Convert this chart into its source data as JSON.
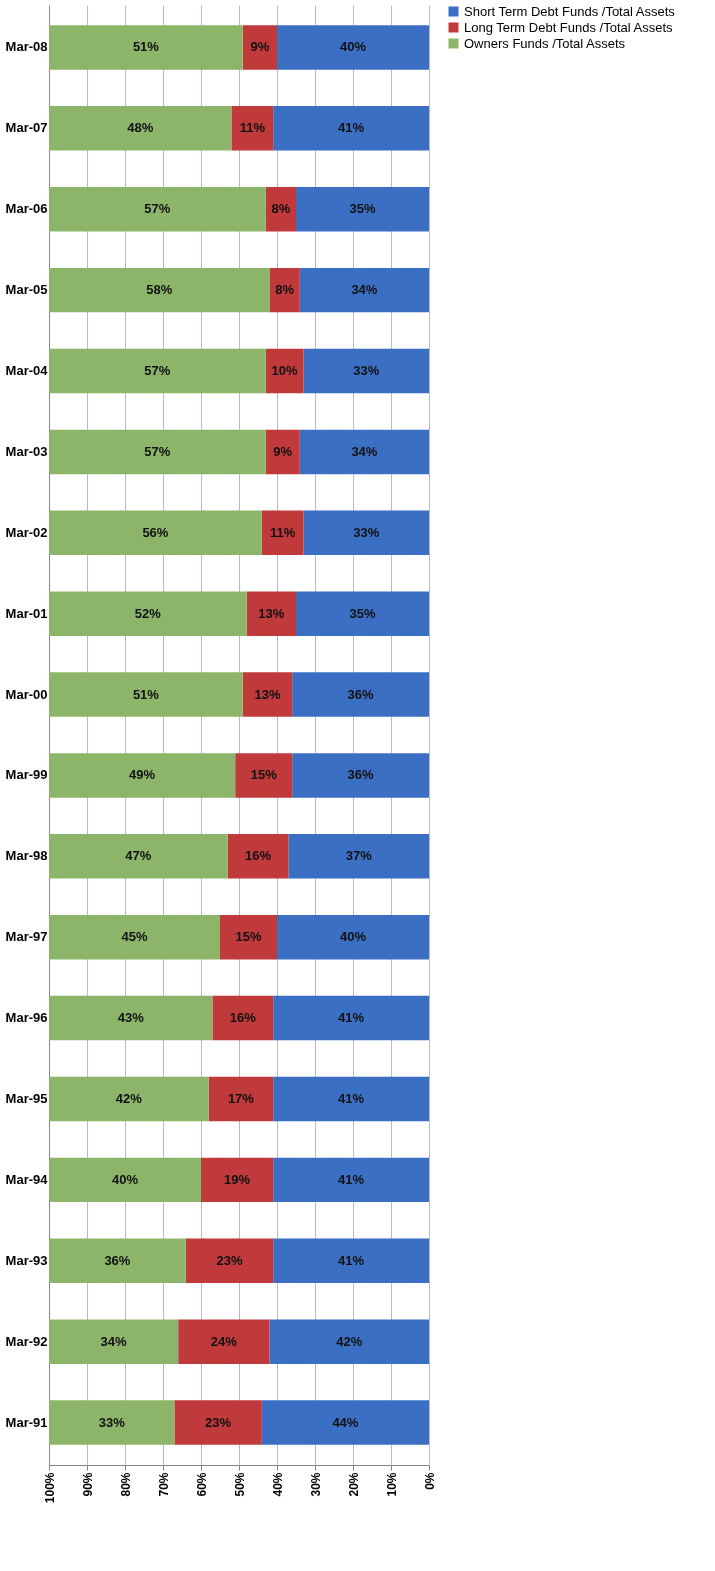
{
  "chart_data": {
    "type": "bar",
    "orientation": "horizontal",
    "stacked": true,
    "categories": [
      "Mar-08",
      "Mar-07",
      "Mar-06",
      "Mar-05",
      "Mar-04",
      "Mar-03",
      "Mar-02",
      "Mar-01",
      "Mar-00",
      "Mar-99",
      "Mar-98",
      "Mar-97",
      "Mar-96",
      "Mar-95",
      "Mar-94",
      "Mar-93",
      "Mar-92",
      "Mar-91"
    ],
    "series": [
      {
        "name": "Short Term Debt Funds /Total Assets",
        "color": "#3b6fc4",
        "values": [
          40,
          41,
          35,
          34,
          33,
          34,
          33,
          35,
          36,
          36,
          37,
          40,
          41,
          41,
          41,
          41,
          42,
          44
        ],
        "value_labels": [
          "40%",
          "41%",
          "35%",
          "34%",
          "33%",
          "34%",
          "33%",
          "35%",
          "36%",
          "36%",
          "37%",
          "40%",
          "41%",
          "41%",
          "41%",
          "41%",
          "42%",
          "44%"
        ]
      },
      {
        "name": "Long Term Debt Funds /Total Assets",
        "color": "#c0393b",
        "values": [
          9,
          11,
          8,
          8,
          10,
          9,
          11,
          13,
          13,
          15,
          16,
          15,
          16,
          17,
          19,
          23,
          24,
          23
        ],
        "value_labels": [
          "9%",
          "11%",
          "8%",
          "8%",
          "10%",
          "9%",
          "11%",
          "13%",
          "13%",
          "15%",
          "16%",
          "15%",
          "16%",
          "17%",
          "19%",
          "23%",
          "24%",
          "23%"
        ]
      },
      {
        "name": "Owners Funds /Total Assets",
        "color": "#8db56a",
        "values": [
          51,
          48,
          57,
          58,
          57,
          57,
          56,
          52,
          51,
          49,
          47,
          45,
          43,
          42,
          40,
          36,
          34,
          33
        ],
        "value_labels": [
          "51%",
          "48%",
          "57%",
          "58%",
          "57%",
          "57%",
          "56%",
          "52%",
          "51%",
          "49%",
          "47%",
          "45%",
          "43%",
          "42%",
          "40%",
          "36%",
          "34%",
          "33%"
        ]
      }
    ],
    "xlim": [
      100,
      0
    ],
    "xticks": [
      {
        "value": 100,
        "label": "100%"
      },
      {
        "value": 90,
        "label": "90%"
      },
      {
        "value": 80,
        "label": "80%"
      },
      {
        "value": 70,
        "label": "70%"
      },
      {
        "value": 60,
        "label": "60%"
      },
      {
        "value": 50,
        "label": "50%"
      },
      {
        "value": 40,
        "label": "40%"
      },
      {
        "value": 30,
        "label": "30%"
      },
      {
        "value": 20,
        "label": "20%"
      },
      {
        "value": 10,
        "label": "10%"
      },
      {
        "value": 0,
        "label": "0%"
      }
    ],
    "grid": "x",
    "legend": "right"
  }
}
